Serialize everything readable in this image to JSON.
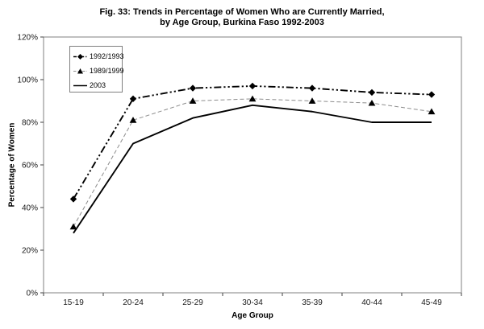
{
  "chart_data": {
    "type": "line",
    "title": "Fig. 33: Trends in Percentage of Women Who are Currently Married, by Age Group, Burkina Faso 1992-2003",
    "title_lines": [
      "Fig. 33:  Trends in Percentage of Women Who are Currently Married,",
      "by Age Group, Burkina Faso 1992-2003"
    ],
    "xlabel": "Age Group",
    "ylabel": "Percentage of Women",
    "categories": [
      "15-19",
      "20-24",
      "25-29",
      "30-34",
      "35-39",
      "40-44",
      "45-49"
    ],
    "series": [
      {
        "name": "1992/1993",
        "values": [
          44,
          91,
          96,
          97,
          96,
          94,
          93
        ],
        "line_style": "dash-dot-dot",
        "marker": "diamond",
        "color": "#000000"
      },
      {
        "name": "1989/1999",
        "values": [
          31,
          81,
          90,
          91,
          90,
          89,
          85
        ],
        "line_style": "dashed",
        "marker": "triangle",
        "color": "#8c8c8c",
        "marker_color": "#000000"
      },
      {
        "name": "2003",
        "values": [
          28,
          70,
          82,
          88,
          85,
          80,
          80
        ],
        "line_style": "solid",
        "marker": "none",
        "color": "#000000"
      }
    ],
    "ylim": [
      0,
      120
    ],
    "ytick_step": 20,
    "ytick_labels": [
      "0%",
      "20%",
      "40%",
      "60%",
      "80%",
      "100%",
      "120%"
    ],
    "grid": false,
    "legend_position": "top-left-inside",
    "plot_border_color": "#808080",
    "tick_color": "#404040"
  }
}
